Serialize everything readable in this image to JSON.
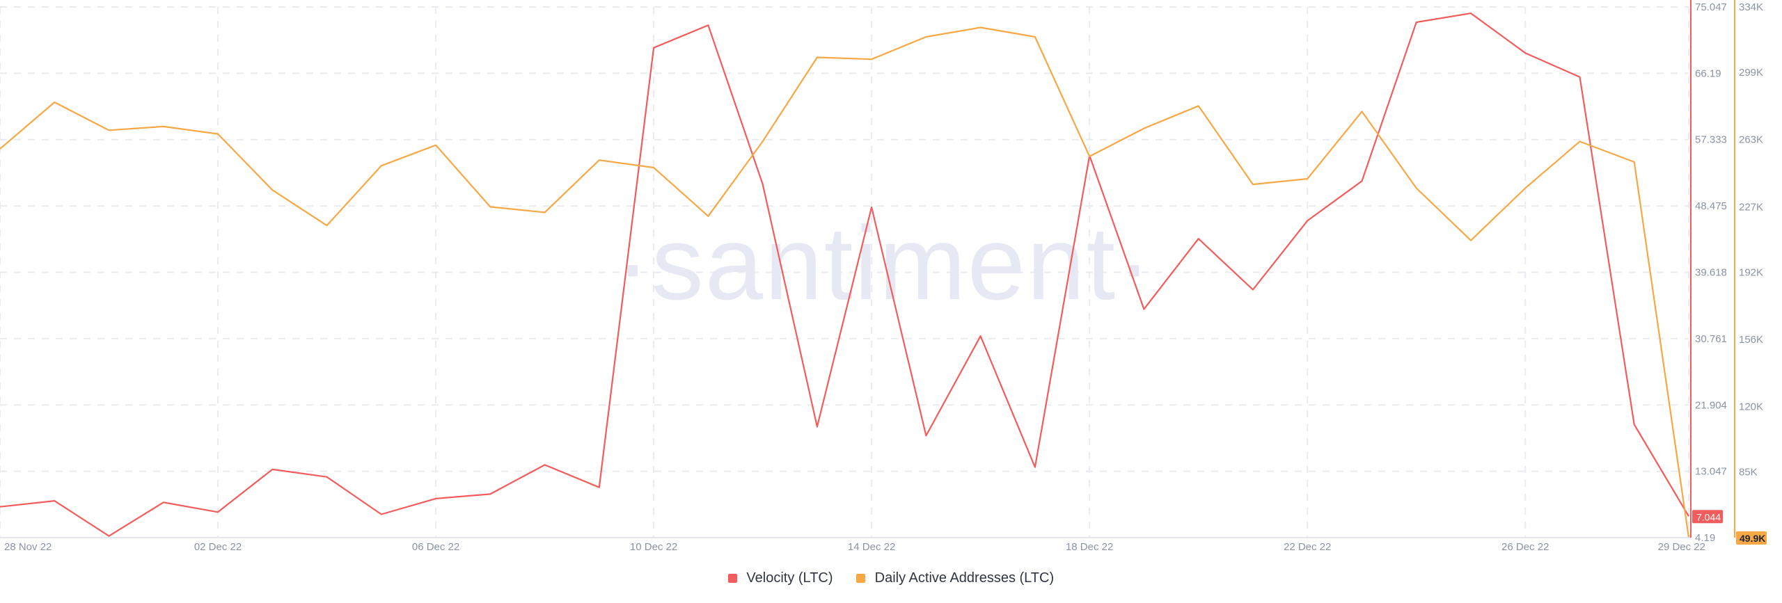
{
  "chart_data": {
    "type": "line",
    "x": [
      "28 Nov 22",
      "29 Nov 22",
      "30 Nov 22",
      "01 Dec 22",
      "02 Dec 22",
      "03 Dec 22",
      "04 Dec 22",
      "05 Dec 22",
      "06 Dec 22",
      "07 Dec 22",
      "08 Dec 22",
      "09 Dec 22",
      "10 Dec 22",
      "11 Dec 22",
      "12 Dec 22",
      "13 Dec 22",
      "14 Dec 22",
      "15 Dec 22",
      "16 Dec 22",
      "17 Dec 22",
      "18 Dec 22",
      "19 Dec 22",
      "20 Dec 22",
      "21 Dec 22",
      "22 Dec 22",
      "23 Dec 22",
      "24 Dec 22",
      "25 Dec 22",
      "26 Dec 22",
      "27 Dec 22",
      "28 Dec 22",
      "29 Dec 22"
    ],
    "x_ticks": [
      "28 Nov 22",
      "02 Dec 22",
      "06 Dec 22",
      "10 Dec 22",
      "14 Dec 22",
      "18 Dec 22",
      "22 Dec 22",
      "26 Dec 22",
      "29 Dec 22"
    ],
    "series": [
      {
        "name": "Velocity (LTC)",
        "axis": "left",
        "color": "#f25c5c",
        "values": [
          8.3,
          9.1,
          4.4,
          8.9,
          7.6,
          13.3,
          12.3,
          7.3,
          9.4,
          10.0,
          13.9,
          10.9,
          69.6,
          72.6,
          51.4,
          19.0,
          48.3,
          17.8,
          31.1,
          13.6,
          55.2,
          34.7,
          44.1,
          37.3,
          46.5,
          51.8,
          73.0,
          74.2,
          68.9,
          65.7,
          19.3,
          7.044
        ]
      },
      {
        "name": "Daily Active Addresses (LTC)",
        "axis": "right",
        "color": "#f7a845",
        "values": [
          258000,
          283000,
          268000,
          270000,
          266000,
          236000,
          217000,
          249000,
          260000,
          227000,
          224000,
          252000,
          248000,
          222000,
          262000,
          307000,
          306000,
          318000,
          323000,
          318000,
          254000,
          269000,
          281000,
          239000,
          242000,
          278000,
          237000,
          209000,
          237000,
          262000,
          251000,
          49900
        ]
      }
    ],
    "left_axis": {
      "ticks": [
        "75.047",
        "66.19",
        "57.333",
        "48.475",
        "39.618",
        "30.761",
        "21.904",
        "13.047",
        "4.19"
      ],
      "range": [
        4.19,
        75.047
      ],
      "last_value_label": "7.044"
    },
    "right_axis": {
      "ticks": [
        "334K",
        "299K",
        "263K",
        "227K",
        "192K",
        "156K",
        "120K",
        "85K"
      ],
      "range": [
        49900,
        334000
      ],
      "last_value_label": "49.9K"
    },
    "watermark": "santiment",
    "legend_position": "bottom-center",
    "grid": true
  }
}
